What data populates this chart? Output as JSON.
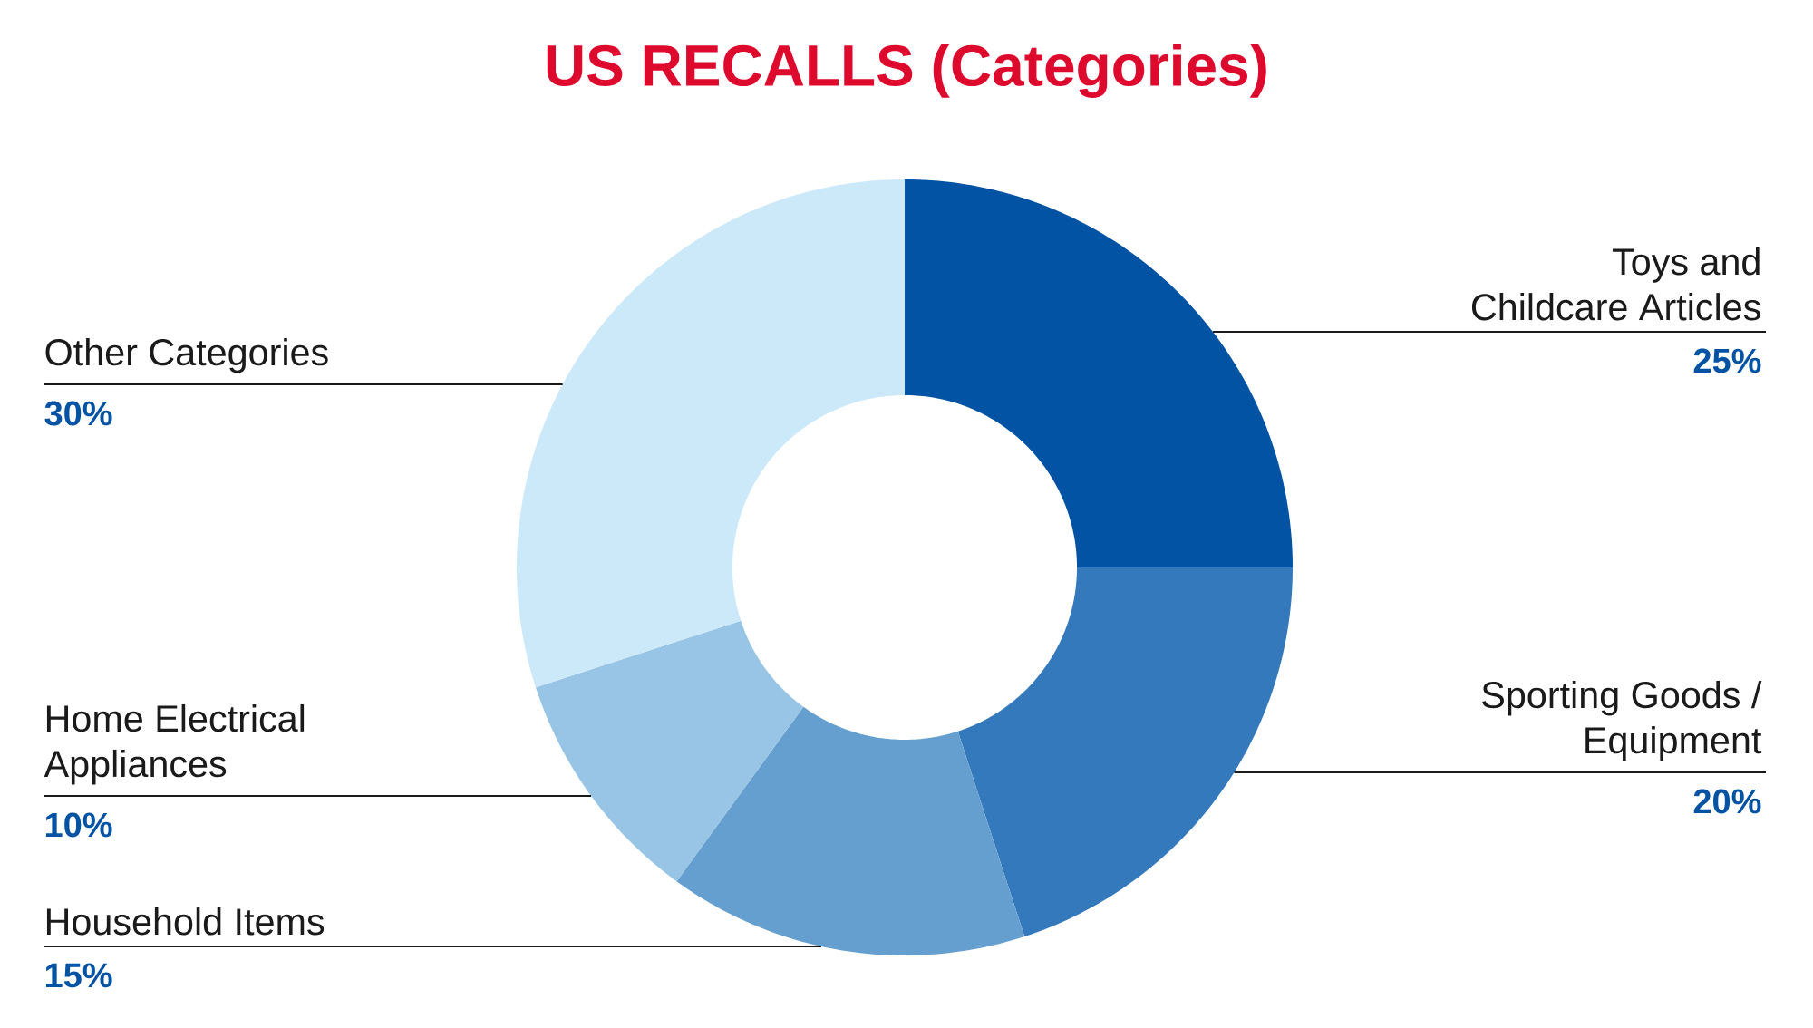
{
  "chart_data": {
    "type": "donut",
    "title": "US RECALLS (Categories)",
    "categories": [
      "Toys and Childcare Articles",
      "Sporting Goods / Equipment",
      "Household Items",
      "Home Electrical Appliances",
      "Other Categories"
    ],
    "values": [
      25,
      20,
      15,
      10,
      30
    ],
    "colors": [
      "#0353a4",
      "#3479bc",
      "#659fcf",
      "#98c5e5",
      "#cce9f9"
    ],
    "value_labels": [
      "25%",
      "20%",
      "15%",
      "10%",
      "30%"
    ]
  }
}
